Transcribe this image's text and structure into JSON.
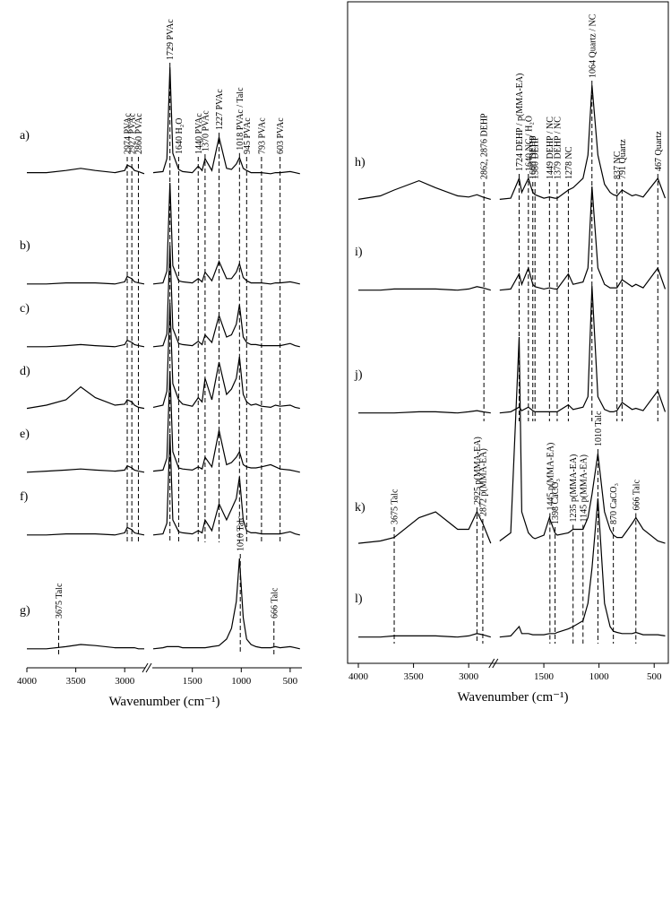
{
  "chart_data": [
    {
      "type": "line",
      "xlabel": "Wavenumber (cm⁻¹)",
      "xlim": [
        4000,
        380
      ],
      "xbreak": [
        2800,
        1900
      ],
      "xticks": [
        4000,
        3500,
        3000,
        1500,
        1000,
        500
      ],
      "color": "#000000",
      "x": [
        4000,
        3800,
        3600,
        3450,
        3300,
        3100,
        3000,
        2974,
        2927,
        2900,
        2860,
        2800,
        1900,
        1800,
        1760,
        1729,
        1700,
        1640,
        1600,
        1500,
        1440,
        1400,
        1370,
        1300,
        1227,
        1150,
        1100,
        1050,
        1018,
        980,
        945,
        900,
        850,
        793,
        700,
        650,
        603,
        500,
        450,
        400
      ],
      "series": [
        {
          "name": "a)",
          "values": [
            0.02,
            0.02,
            0.04,
            0.06,
            0.04,
            0.02,
            0.04,
            0.09,
            0.07,
            0.04,
            0.03,
            0.01,
            0.02,
            0.03,
            0.15,
            1.0,
            0.2,
            0.05,
            0.03,
            0.02,
            0.08,
            0.04,
            0.15,
            0.04,
            0.35,
            0.06,
            0.05,
            0.1,
            0.16,
            0.06,
            0.04,
            0.02,
            0.02,
            0.02,
            0.01,
            0.02,
            0.02,
            0.03,
            0.02,
            0.01
          ]
        },
        {
          "name": "b)",
          "values": [
            0.01,
            0.01,
            0.02,
            0.02,
            0.02,
            0.01,
            0.03,
            0.08,
            0.06,
            0.03,
            0.02,
            0.01,
            0.01,
            0.02,
            0.13,
            0.95,
            0.18,
            0.04,
            0.03,
            0.02,
            0.06,
            0.03,
            0.12,
            0.04,
            0.22,
            0.06,
            0.06,
            0.12,
            0.2,
            0.07,
            0.04,
            0.02,
            0.02,
            0.02,
            0.01,
            0.02,
            0.02,
            0.03,
            0.02,
            0.01
          ]
        },
        {
          "name": "c)",
          "values": [
            0.01,
            0.01,
            0.02,
            0.03,
            0.02,
            0.01,
            0.03,
            0.07,
            0.05,
            0.03,
            0.02,
            0.01,
            0.01,
            0.02,
            0.13,
            0.95,
            0.18,
            0.04,
            0.03,
            0.02,
            0.06,
            0.03,
            0.12,
            0.05,
            0.3,
            0.1,
            0.12,
            0.22,
            0.4,
            0.1,
            0.05,
            0.03,
            0.03,
            0.02,
            0.02,
            0.02,
            0.02,
            0.04,
            0.02,
            0.01
          ]
        },
        {
          "name": "d)",
          "values": [
            0.02,
            0.05,
            0.1,
            0.22,
            0.12,
            0.05,
            0.06,
            0.1,
            0.08,
            0.05,
            0.03,
            0.02,
            0.03,
            0.05,
            0.18,
            1.0,
            0.25,
            0.1,
            0.06,
            0.04,
            0.12,
            0.08,
            0.3,
            0.1,
            0.45,
            0.15,
            0.2,
            0.3,
            0.5,
            0.15,
            0.08,
            0.05,
            0.06,
            0.04,
            0.03,
            0.05,
            0.04,
            0.05,
            0.03,
            0.02
          ]
        },
        {
          "name": "e)",
          "values": [
            0.01,
            0.02,
            0.03,
            0.04,
            0.03,
            0.02,
            0.03,
            0.07,
            0.05,
            0.03,
            0.02,
            0.01,
            0.02,
            0.03,
            0.14,
            0.95,
            0.2,
            0.05,
            0.04,
            0.03,
            0.06,
            0.04,
            0.15,
            0.06,
            0.4,
            0.08,
            0.1,
            0.15,
            0.2,
            0.08,
            0.06,
            0.05,
            0.05,
            0.06,
            0.08,
            0.06,
            0.04,
            0.03,
            0.02,
            0.01
          ]
        },
        {
          "name": "f)",
          "values": [
            0.01,
            0.01,
            0.02,
            0.02,
            0.02,
            0.01,
            0.03,
            0.08,
            0.06,
            0.03,
            0.02,
            0.01,
            0.01,
            0.02,
            0.12,
            0.95,
            0.15,
            0.04,
            0.03,
            0.02,
            0.05,
            0.03,
            0.15,
            0.05,
            0.3,
            0.15,
            0.25,
            0.35,
            0.55,
            0.15,
            0.05,
            0.03,
            0.03,
            0.02,
            0.02,
            0.02,
            0.02,
            0.04,
            0.02,
            0.01
          ]
        },
        {
          "name": "g)",
          "values": [
            0.01,
            0.01,
            0.03,
            0.05,
            0.04,
            0.02,
            0.02,
            0.02,
            0.02,
            0.02,
            0.01,
            0.01,
            0.01,
            0.02,
            0.03,
            0.03,
            0.03,
            0.03,
            0.02,
            0.02,
            0.02,
            0.02,
            0.02,
            0.03,
            0.04,
            0.1,
            0.2,
            0.45,
            0.85,
            0.3,
            0.1,
            0.05,
            0.03,
            0.02,
            0.02,
            0.03,
            0.02,
            0.03,
            0.02,
            0.01
          ]
        }
      ],
      "annotations": [
        [
          {
            "x": 2974,
            "text": "2974 PVAc"
          },
          {
            "x": 2927,
            "text": "2927 PVAc"
          },
          {
            "x": 2860,
            "text": "2860 PVAc"
          },
          {
            "x": 1729,
            "text": "1729 PVAc"
          },
          {
            "x": 1640,
            "text": "1640 H₂O"
          },
          {
            "x": 1440,
            "text": "1440 PVAc"
          },
          {
            "x": 1370,
            "text": "1370 PVAc"
          },
          {
            "x": 1227,
            "text": "1227 PVAc"
          },
          {
            "x": 1018,
            "text": "1018 PVAc / Talc"
          },
          {
            "x": 945,
            "text": "945 PVAc"
          },
          {
            "x": 793,
            "text": "793 PVAc"
          },
          {
            "x": 603,
            "text": "603 PVAc"
          }
        ],
        [
          {
            "x": 3675,
            "text": "3675 Talc"
          },
          {
            "x": 1010,
            "text": "1010 Talc"
          },
          {
            "x": 666,
            "text": "666 Talc"
          }
        ]
      ]
    },
    {
      "type": "line",
      "xlabel": "Wavenumber (cm⁻¹)",
      "xlim": [
        4000,
        380
      ],
      "xbreak": [
        2800,
        1900
      ],
      "xticks": [
        4000,
        3500,
        3000,
        1500,
        1000,
        500
      ],
      "color": "#000000",
      "x": [
        4000,
        3800,
        3675,
        3450,
        3300,
        3100,
        3000,
        2925,
        2872,
        2800,
        1900,
        1800,
        1724,
        1700,
        1640,
        1600,
        1580,
        1500,
        1449,
        1400,
        1379,
        1278,
        1235,
        1145,
        1100,
        1064,
        1010,
        950,
        900,
        870,
        837,
        791,
        700,
        666,
        600,
        467,
        400
      ],
      "series": [
        {
          "name": "h)",
          "values": [
            0.02,
            0.05,
            0.1,
            0.18,
            0.12,
            0.05,
            0.04,
            0.06,
            0.04,
            0.02,
            0.02,
            0.03,
            0.2,
            0.08,
            0.2,
            0.08,
            0.06,
            0.03,
            0.04,
            0.03,
            0.03,
            0.1,
            0.12,
            0.2,
            0.4,
            1.0,
            0.4,
            0.15,
            0.08,
            0.06,
            0.05,
            0.1,
            0.05,
            0.06,
            0.04,
            0.2,
            0.03
          ]
        },
        {
          "name": "i)",
          "values": [
            0.01,
            0.01,
            0.02,
            0.02,
            0.02,
            0.01,
            0.02,
            0.04,
            0.03,
            0.01,
            0.01,
            0.02,
            0.15,
            0.06,
            0.2,
            0.06,
            0.04,
            0.02,
            0.03,
            0.02,
            0.02,
            0.15,
            0.06,
            0.08,
            0.2,
            0.9,
            0.2,
            0.06,
            0.03,
            0.03,
            0.03,
            0.1,
            0.04,
            0.06,
            0.03,
            0.2,
            0.02
          ]
        },
        {
          "name": "j)",
          "values": [
            0.01,
            0.01,
            0.01,
            0.02,
            0.02,
            0.01,
            0.02,
            0.03,
            0.02,
            0.01,
            0.01,
            0.02,
            0.06,
            0.03,
            0.06,
            0.03,
            0.02,
            0.02,
            0.02,
            0.02,
            0.02,
            0.08,
            0.04,
            0.06,
            0.15,
            1.1,
            0.15,
            0.04,
            0.02,
            0.02,
            0.03,
            0.1,
            0.04,
            0.05,
            0.03,
            0.2,
            0.02
          ]
        },
        {
          "name": "k)",
          "values": [
            0.03,
            0.05,
            0.08,
            0.25,
            0.3,
            0.15,
            0.15,
            0.3,
            0.2,
            0.03,
            0.05,
            0.12,
            1.8,
            0.3,
            0.12,
            0.08,
            0.07,
            0.1,
            0.25,
            0.12,
            0.1,
            0.12,
            0.15,
            0.15,
            0.25,
            0.45,
            0.8,
            0.3,
            0.15,
            0.1,
            0.08,
            0.08,
            0.2,
            0.25,
            0.15,
            0.05,
            0.03
          ]
        },
        {
          "name": "l)",
          "values": [
            0.01,
            0.01,
            0.02,
            0.02,
            0.02,
            0.01,
            0.02,
            0.04,
            0.03,
            0.01,
            0.01,
            0.02,
            0.1,
            0.04,
            0.04,
            0.03,
            0.03,
            0.03,
            0.04,
            0.04,
            0.05,
            0.08,
            0.1,
            0.15,
            0.3,
            0.6,
            1.2,
            0.3,
            0.1,
            0.06,
            0.05,
            0.04,
            0.04,
            0.05,
            0.03,
            0.03,
            0.02
          ]
        }
      ],
      "annotations": [
        [
          {
            "x": 2862,
            "text": "2862, 2876 DEHP"
          },
          {
            "x": 1724,
            "text": "1724 DEHP / p(MMA-EA)"
          },
          {
            "x": 1640,
            "text": "1640 NC / H₂O"
          },
          {
            "x": 1600,
            "text": "1600 DEHP"
          },
          {
            "x": 1580,
            "text": "1580 DEHP"
          },
          {
            "x": 1449,
            "text": "1449 DEHP / NC"
          },
          {
            "x": 1379,
            "text": "1379 DEHP / NC"
          },
          {
            "x": 1278,
            "text": "1278 NC"
          },
          {
            "x": 1064,
            "text": "1064 Quartz / NC"
          },
          {
            "x": 837,
            "text": "837 NC"
          },
          {
            "x": 791,
            "text": "791 Quartz"
          },
          {
            "x": 467,
            "text": "467 Quartz"
          }
        ],
        [
          {
            "x": 3675,
            "text": "3675 Talc"
          },
          {
            "x": 2925,
            "text": "2925 p(MMA-EA)"
          },
          {
            "x": 2872,
            "text": "2872 p(MMA-EA)"
          },
          {
            "x": 1445,
            "text": "1445 p(MMA-EA)"
          },
          {
            "x": 1398,
            "text": "1398 CaCO₃"
          },
          {
            "x": 1235,
            "text": "1235 p(MMA-EA)"
          },
          {
            "x": 1145,
            "text": "1145 p(MMA-EA)"
          },
          {
            "x": 1010,
            "text": "1010 Talc"
          },
          {
            "x": 870,
            "text": "870 CaCO₃"
          },
          {
            "x": 666,
            "text": "666 Talc"
          }
        ]
      ]
    }
  ]
}
